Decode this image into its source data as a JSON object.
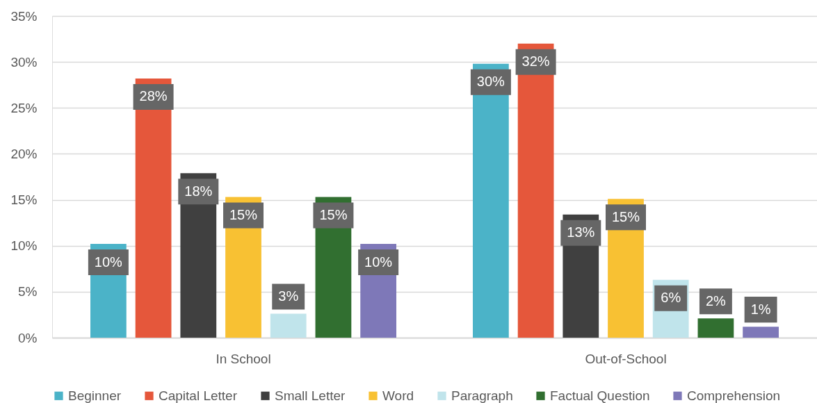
{
  "chart_data": {
    "type": "bar",
    "categories": [
      "In School",
      "Out-of-School"
    ],
    "series": [
      {
        "name": "Beginner",
        "color": "#4bb3c8",
        "values": [
          10.2,
          29.8
        ],
        "value_labels": [
          "10%",
          "30%"
        ]
      },
      {
        "name": "Capital Letter",
        "color": "#e5573b",
        "values": [
          28.2,
          32.0
        ],
        "value_labels": [
          "28%",
          "32%"
        ]
      },
      {
        "name": "Small Letter",
        "color": "#404040",
        "values": [
          17.9,
          13.4
        ],
        "value_labels": [
          "18%",
          "13%"
        ]
      },
      {
        "name": "Word",
        "color": "#f8c133",
        "values": [
          15.3,
          15.1
        ],
        "value_labels": [
          "15%",
          "15%"
        ]
      },
      {
        "name": "Paragraph",
        "color": "#c0e4eb",
        "values": [
          2.6,
          6.3
        ],
        "value_labels": [
          "3%",
          "6%"
        ]
      },
      {
        "name": "Factual Question",
        "color": "#316f30",
        "values": [
          15.3,
          2.1
        ],
        "value_labels": [
          "15%",
          "2%"
        ]
      },
      {
        "name": "Comprehension",
        "color": "#7e78b8",
        "values": [
          10.2,
          1.2
        ],
        "value_labels": [
          "10%",
          "1%"
        ]
      }
    ],
    "ylim": [
      0,
      35
    ],
    "yticks": [
      {
        "value": 0,
        "label": "0%"
      },
      {
        "value": 5,
        "label": "5%"
      },
      {
        "value": 10,
        "label": "10%"
      },
      {
        "value": 15,
        "label": "15%"
      },
      {
        "value": 20,
        "label": "20%"
      },
      {
        "value": 25,
        "label": "25%"
      },
      {
        "value": 30,
        "label": "30%"
      },
      {
        "value": 35,
        "label": "35%"
      }
    ],
    "grid": "y",
    "legend": "bottom"
  }
}
